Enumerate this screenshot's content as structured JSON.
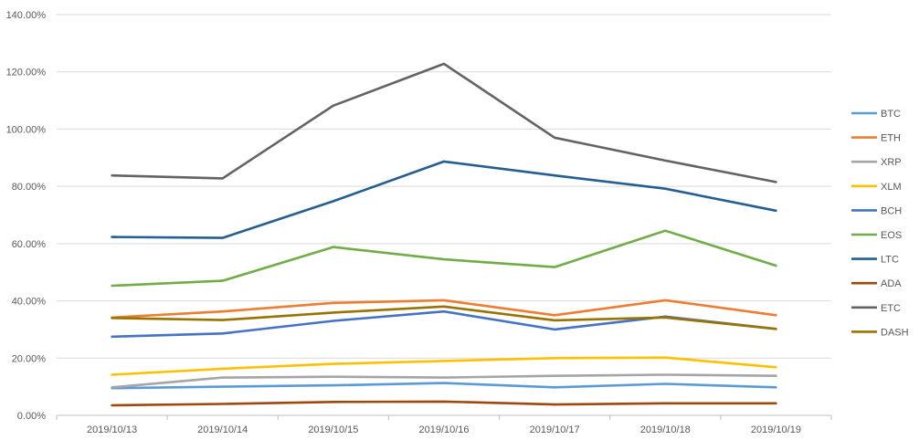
{
  "chart_data": {
    "type": "line",
    "title": "",
    "xlabel": "",
    "ylabel": "",
    "ylim": [
      0,
      140
    ],
    "y_tick_step": 20,
    "y_tick_labels": [
      "0.00%",
      "20.00%",
      "40.00%",
      "60.00%",
      "80.00%",
      "100.00%",
      "120.00%",
      "140.00%"
    ],
    "grid": true,
    "legend_position": "right",
    "categories": [
      "2019/10/13",
      "2019/10/14",
      "2019/10/15",
      "2019/10/16",
      "2019/10/17",
      "2019/10/18",
      "2019/10/19"
    ],
    "series": [
      {
        "name": "BTC",
        "color": "#5B9BD5",
        "values": [
          9.5,
          10.0,
          10.5,
          11.3,
          9.8,
          11.0,
          9.8
        ]
      },
      {
        "name": "ETH",
        "color": "#ED7D31",
        "values": [
          34.2,
          36.3,
          39.3,
          40.2,
          35.0,
          40.2,
          35.0
        ]
      },
      {
        "name": "XRP",
        "color": "#A5A5A5",
        "values": [
          9.8,
          13.2,
          13.5,
          13.2,
          13.8,
          14.2,
          13.8
        ]
      },
      {
        "name": "XLM",
        "color": "#FFC000",
        "values": [
          14.2,
          16.3,
          18.0,
          19.0,
          20.0,
          20.2,
          16.8
        ]
      },
      {
        "name": "BCH",
        "color": "#4472C4",
        "values": [
          27.5,
          28.6,
          33.0,
          36.3,
          30.0,
          34.5,
          30.2
        ]
      },
      {
        "name": "EOS",
        "color": "#70AD47",
        "values": [
          45.3,
          47.0,
          58.8,
          54.5,
          51.8,
          64.5,
          52.3
        ]
      },
      {
        "name": "LTC",
        "color": "#255E91",
        "values": [
          62.3,
          62.0,
          74.8,
          88.7,
          83.8,
          79.2,
          71.5
        ]
      },
      {
        "name": "ADA",
        "color": "#9E480E",
        "values": [
          3.5,
          4.0,
          4.7,
          4.8,
          3.8,
          4.2,
          4.2
        ]
      },
      {
        "name": "ETC",
        "color": "#636363",
        "values": [
          83.8,
          82.8,
          108.2,
          122.8,
          97.0,
          89.0,
          81.5
        ]
      },
      {
        "name": "DASH",
        "color": "#997300",
        "values": [
          34.0,
          33.3,
          35.9,
          38.0,
          33.2,
          34.2,
          30.2
        ]
      }
    ]
  }
}
